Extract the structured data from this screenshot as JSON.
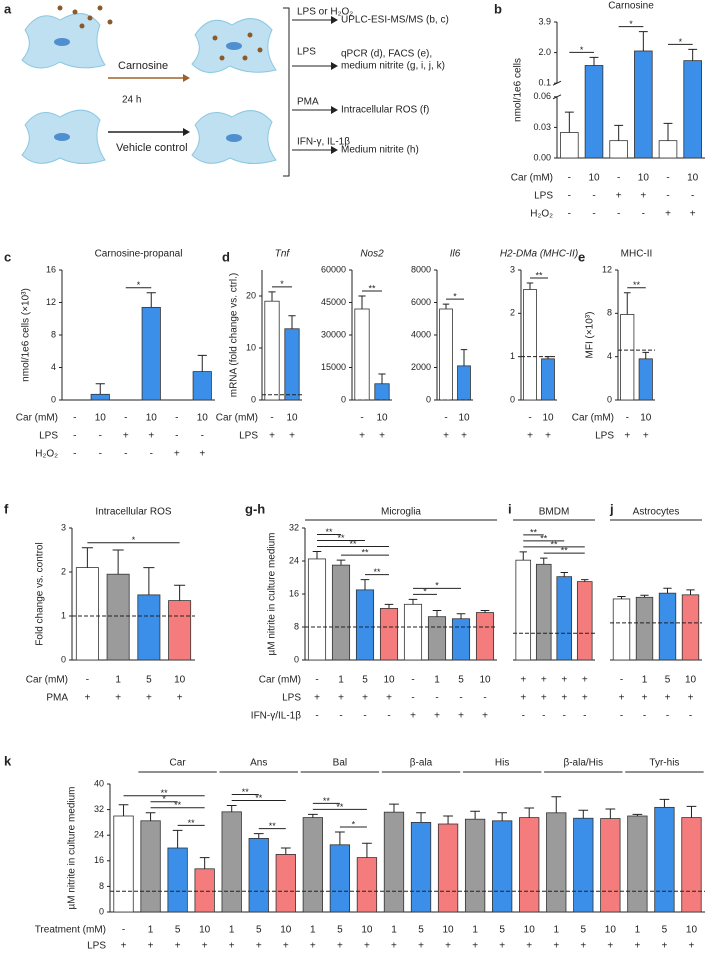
{
  "diagram": {
    "label": "a",
    "treatment": "Carnosine",
    "time": "24 h",
    "control": "Vehicle control",
    "conditions": [
      {
        "stimulus": "LPS or H₂O₂",
        "readout": [
          "UPLC-ESI-MS/MS (b, c)"
        ]
      },
      {
        "stimulus": "LPS",
        "readout": [
          "qPCR (d), FACS (e),",
          "medium nitrite (g, i, j, k)"
        ]
      },
      {
        "stimulus": "PMA",
        "readout": [
          "Intracellular ROS (f)"
        ]
      },
      {
        "stimulus": "IFN-γ, IL-1β",
        "readout": [
          "Medium nitrite (h)"
        ]
      }
    ]
  },
  "chart_data": [
    {
      "type": "bar",
      "panel": "b",
      "title": "Carnosine",
      "ylabel": "nmol/1e6 cells",
      "ylim": [
        0,
        3.9
      ],
      "ybreak": [
        0.06,
        0.1
      ],
      "yticks": [
        {
          "value": 0,
          "label": "0.00"
        },
        0.03,
        0.06,
        0.1,
        {
          "value": 2,
          "label": "2.0"
        },
        3.9
      ],
      "values": [
        0.025,
        1.2,
        0.017,
        2.1,
        0.017,
        1.5
      ],
      "errors": [
        0.02,
        0.5,
        0.015,
        1.2,
        0.017,
        0.7
      ],
      "colors": [
        "#ffffff",
        "#3b8fe8",
        "#ffffff",
        "#3b8fe8",
        "#ffffff",
        "#3b8fe8"
      ],
      "rows": [
        {
          "label": "Car (mM)",
          "values": [
            "-",
            "10",
            "-",
            "10",
            "-",
            "10"
          ]
        },
        {
          "label": "LPS",
          "values": [
            "-",
            "-",
            "+",
            "+",
            "-",
            "-"
          ]
        },
        {
          "label": "H₂O₂",
          "values": [
            "-",
            "-",
            "-",
            "-",
            "+",
            "+"
          ]
        }
      ],
      "significance": [
        {
          "label": "*",
          "bars": [
            0,
            1
          ]
        },
        {
          "label": "*",
          "bars": [
            2,
            3
          ]
        },
        {
          "label": "*",
          "bars": [
            4,
            5
          ]
        }
      ]
    },
    {
      "type": "bar",
      "panel": "c",
      "title": "Carnosine-propanal",
      "ylabel": "nmol/1e6 cells (×10³)",
      "ylim": [
        0,
        16
      ],
      "yticks": [
        0,
        4,
        8,
        12,
        16
      ],
      "values": [
        0,
        0.7,
        0,
        11.4,
        0,
        3.5
      ],
      "errors": [
        0,
        1.3,
        0,
        1.8,
        0,
        2.0
      ],
      "colors": [
        "#ffffff",
        "#3b8fe8",
        "#ffffff",
        "#3b8fe8",
        "#ffffff",
        "#3b8fe8"
      ],
      "rows": [
        {
          "label": "Car (mM)",
          "values": [
            "-",
            "10",
            "-",
            "10",
            "-",
            "10"
          ]
        },
        {
          "label": "LPS",
          "values": [
            "-",
            "-",
            "+",
            "+",
            "-",
            "-"
          ]
        },
        {
          "label": "H₂O₂",
          "values": [
            "-",
            "-",
            "-",
            "-",
            "+",
            "+"
          ]
        }
      ],
      "significance": [
        {
          "label": "*",
          "bars": [
            2,
            3
          ]
        }
      ]
    },
    {
      "type": "bar",
      "panel": "d",
      "title": "Tnf",
      "ylabel": "mRNA (fold change vs. ctrl.)",
      "ylim": [
        0,
        25
      ],
      "yticks": [
        0,
        10,
        20
      ],
      "values": [
        19,
        13.7
      ],
      "errors": [
        1.8,
        2.5
      ],
      "colors": [
        "#ffffff",
        "#3b8fe8"
      ],
      "baseline": 1,
      "rows": [
        {
          "label": "Car (mM)",
          "values": [
            "-",
            "10"
          ]
        },
        {
          "label": "LPS",
          "values": [
            "+",
            "+"
          ]
        }
      ],
      "significance": [
        {
          "label": "*",
          "bars": [
            0,
            1
          ]
        }
      ]
    },
    {
      "type": "bar",
      "title": "Nos2",
      "ylim": [
        0,
        60000
      ],
      "yticks": [
        0,
        15000,
        30000,
        45000,
        60000
      ],
      "values": [
        42000,
        7500
      ],
      "errors": [
        6000,
        4500
      ],
      "colors": [
        "#ffffff",
        "#3b8fe8"
      ],
      "baseline": 1,
      "rows": [
        {
          "values": [
            "-",
            "10"
          ]
        },
        {
          "values": [
            "+",
            "+"
          ]
        }
      ],
      "significance": [
        {
          "label": "**",
          "bars": [
            0,
            1
          ]
        }
      ]
    },
    {
      "type": "bar",
      "title": "Il6",
      "ylim": [
        0,
        8000
      ],
      "yticks": [
        0,
        2000,
        4000,
        6000,
        8000
      ],
      "values": [
        5600,
        2100
      ],
      "errors": [
        300,
        1000
      ],
      "colors": [
        "#ffffff",
        "#3b8fe8"
      ],
      "baseline": 1,
      "rows": [
        {
          "values": [
            "-",
            "10"
          ]
        },
        {
          "values": [
            "+",
            "+"
          ]
        }
      ],
      "significance": [
        {
          "label": "*",
          "bars": [
            0,
            1
          ]
        }
      ]
    },
    {
      "type": "bar",
      "title": "H2-DMa (MHC-II)",
      "ylim": [
        0,
        3
      ],
      "yticks": [
        0,
        1,
        2,
        3
      ],
      "values": [
        2.55,
        0.95
      ],
      "errors": [
        0.15,
        0.05
      ],
      "colors": [
        "#ffffff",
        "#3b8fe8"
      ],
      "baseline": 1,
      "rows": [
        {
          "values": [
            "-",
            "10"
          ]
        },
        {
          "values": [
            "+",
            "+"
          ]
        }
      ],
      "significance": [
        {
          "label": "**",
          "bars": [
            0,
            1
          ]
        }
      ]
    },
    {
      "type": "bar",
      "panel": "e",
      "title": "MHC-II",
      "ylabel": "MFI (×10³)",
      "ylim": [
        0,
        12
      ],
      "yticks": [
        0,
        4,
        8,
        12
      ],
      "values": [
        7.9,
        3.8
      ],
      "errors": [
        2,
        0.6
      ],
      "colors": [
        "#ffffff",
        "#3b8fe8"
      ],
      "baseline": 4.6,
      "rows": [
        {
          "label": "Car (mM)",
          "values": [
            "-",
            "10"
          ]
        },
        {
          "label": "LPS",
          "values": [
            "+",
            "+"
          ]
        }
      ],
      "significance": [
        {
          "label": "**",
          "bars": [
            0,
            1
          ]
        }
      ]
    },
    {
      "type": "bar",
      "panel": "f",
      "title": "Intracellular ROS",
      "ylabel": "Fold change vs. control",
      "ylim": [
        0,
        3
      ],
      "yticks": [
        0,
        1,
        2,
        3
      ],
      "values": [
        2.1,
        1.95,
        1.48,
        1.35
      ],
      "errors": [
        0.45,
        0.55,
        0.62,
        0.35
      ],
      "colors": [
        "#ffffff",
        "#9b9b9b",
        "#3b8fe8",
        "#f47c7c"
      ],
      "baseline": 1,
      "rows": [
        {
          "label": "Car (mM)",
          "values": [
            "-",
            "1",
            "5",
            "10"
          ]
        },
        {
          "label": "PMA",
          "values": [
            "+",
            "+",
            "+",
            "+"
          ]
        }
      ],
      "significance": [
        {
          "label": "*",
          "bars": [
            0,
            3
          ]
        }
      ]
    },
    {
      "type": "bar",
      "panel": "g-h",
      "title": "Microglia",
      "ylabel": "µM nitrite in culture medium",
      "ylim": [
        0,
        32
      ],
      "yticks": [
        0,
        8,
        16,
        24,
        32
      ],
      "values": [
        24.5,
        23,
        17,
        12.5,
        13.5,
        10.5,
        10,
        11.5
      ],
      "errors": [
        1.8,
        1.2,
        2.5,
        1,
        1.2,
        1.5,
        1.2,
        0.5
      ],
      "colors": [
        "#ffffff",
        "#9b9b9b",
        "#3b8fe8",
        "#f47c7c",
        "#ffffff",
        "#9b9b9b",
        "#3b8fe8",
        "#f47c7c"
      ],
      "baseline": 8,
      "rows": [
        {
          "label": "Car (mM)",
          "values": [
            "-",
            "1",
            "5",
            "10",
            "-",
            "1",
            "5",
            "10"
          ]
        },
        {
          "label": "LPS",
          "values": [
            "+",
            "+",
            "+",
            "+",
            "-",
            "-",
            "-",
            "-"
          ]
        },
        {
          "label": "IFN-γ/IL-1β",
          "values": [
            "-",
            "-",
            "-",
            "-",
            "+",
            "+",
            "+",
            "+"
          ]
        }
      ],
      "significance": [
        {
          "label": "**",
          "bars": [
            2,
            3
          ]
        },
        {
          "label": "**",
          "bars": [
            1,
            3
          ]
        },
        {
          "label": "**",
          "bars": [
            0,
            3
          ]
        },
        {
          "label": "**",
          "bars": [
            0,
            2
          ]
        },
        {
          "label": "**",
          "bars": [
            0,
            1
          ]
        },
        {
          "label": "*",
          "bars": [
            4,
            5
          ]
        },
        {
          "label": "*",
          "bars": [
            4,
            6
          ]
        }
      ]
    },
    {
      "type": "bar",
      "panel": "i",
      "title": "BMDM",
      "ylim": [
        0,
        32
      ],
      "values": [
        24.2,
        23.2,
        20.2,
        19
      ],
      "errors": [
        2,
        1.5,
        1,
        0.5
      ],
      "colors": [
        "#ffffff",
        "#9b9b9b",
        "#3b8fe8",
        "#f47c7c"
      ],
      "baseline": 6.5,
      "rows": [
        {
          "values": [
            "+",
            "+",
            "+",
            "+"
          ]
        },
        {
          "values": [
            "+",
            "+",
            "+",
            "+"
          ]
        },
        {
          "values": [
            "-",
            "-",
            "-",
            "-"
          ]
        }
      ],
      "significance": [
        {
          "label": "**",
          "bars": [
            1,
            3
          ]
        },
        {
          "label": "**",
          "bars": [
            0,
            3
          ]
        },
        {
          "label": "**",
          "bars": [
            0,
            2
          ]
        },
        {
          "label": "**",
          "bars": [
            0,
            1
          ]
        }
      ]
    },
    {
      "type": "bar",
      "panel": "j",
      "title": "Astrocytes",
      "ylim": [
        0,
        32
      ],
      "values": [
        14.8,
        15.2,
        16.2,
        15.8
      ],
      "errors": [
        0.6,
        0.5,
        1.2,
        1.2
      ],
      "colors": [
        "#ffffff",
        "#9b9b9b",
        "#3b8fe8",
        "#f47c7c"
      ],
      "baseline": 9,
      "rows": [
        {
          "values": [
            "-",
            "1",
            "5",
            "10"
          ]
        },
        {
          "values": [
            "+",
            "+",
            "+",
            "+"
          ]
        },
        {
          "values": [
            "-",
            "-",
            "-",
            "-"
          ]
        }
      ]
    },
    {
      "type": "bar",
      "panel": "k",
      "ylabel": "µM nitrite in culture medium",
      "ylim": [
        0,
        40
      ],
      "yticks": [
        0,
        8,
        16,
        24,
        32,
        40
      ],
      "values": [
        30,
        28.5,
        20,
        13.5,
        31.3,
        23,
        18,
        29.5,
        21,
        17,
        31.2,
        28,
        27.5,
        29,
        28.5,
        29.5,
        31,
        29.3,
        29.2,
        30,
        32.7,
        29.5
      ],
      "errors": [
        3.5,
        2.5,
        5.5,
        3.5,
        2,
        1.5,
        2,
        1,
        4,
        4.5,
        2.5,
        3,
        2.5,
        2.5,
        2.5,
        3,
        5,
        2.5,
        3,
        0.5,
        2.5,
        3.5
      ],
      "colors": [
        "#ffffff",
        "#9b9b9b",
        "#3b8fe8",
        "#f47c7c",
        "#9b9b9b",
        "#3b8fe8",
        "#f47c7c",
        "#9b9b9b",
        "#3b8fe8",
        "#f47c7c",
        "#9b9b9b",
        "#3b8fe8",
        "#f47c7c",
        "#9b9b9b",
        "#3b8fe8",
        "#f47c7c",
        "#9b9b9b",
        "#3b8fe8",
        "#f47c7c",
        "#9b9b9b",
        "#3b8fe8",
        "#f47c7c"
      ],
      "baseline": 6.5,
      "rows": [
        {
          "label": "Treatment (mM)",
          "values": [
            "-",
            "1",
            "5",
            "10",
            "1",
            "5",
            "10",
            "1",
            "5",
            "10",
            "1",
            "5",
            "10",
            "1",
            "5",
            "10",
            "1",
            "5",
            "10",
            "1",
            "5",
            "10"
          ]
        },
        {
          "label": "LPS",
          "values": [
            "+",
            "+",
            "+",
            "+",
            "+",
            "+",
            "+",
            "+",
            "+",
            "+",
            "+",
            "+",
            "+",
            "+",
            "+",
            "+",
            "+",
            "+",
            "+",
            "+",
            "+",
            "+"
          ]
        }
      ],
      "groups": [
        {
          "label": "Car",
          "bars": [
            1,
            3
          ]
        },
        {
          "label": "Ans",
          "bars": [
            4,
            6
          ]
        },
        {
          "label": "Bal",
          "bars": [
            7,
            9
          ]
        },
        {
          "label": "β-ala",
          "bars": [
            10,
            12
          ]
        },
        {
          "label": "His",
          "bars": [
            13,
            15
          ]
        },
        {
          "label": "β-ala/His",
          "bars": [
            16,
            18
          ]
        },
        {
          "label": "Tyr-his",
          "bars": [
            19,
            21
          ]
        }
      ],
      "significance": [
        {
          "label": "**",
          "bars": [
            2,
            3
          ]
        },
        {
          "label": "**",
          "bars": [
            1,
            3
          ]
        },
        {
          "label": "*",
          "bars": [
            1,
            2
          ]
        },
        {
          "label": "**",
          "bars": [
            5,
            6
          ]
        },
        {
          "label": "**",
          "bars": [
            4,
            6
          ]
        },
        {
          "label": "**",
          "bars": [
            4,
            5
          ]
        },
        {
          "label": "*",
          "bars": [
            8,
            9
          ]
        },
        {
          "label": "**",
          "bars": [
            7,
            9
          ]
        },
        {
          "label": "**",
          "bars": [
            7,
            8
          ]
        },
        {
          "label": "**",
          "bars": [
            0,
            3
          ]
        }
      ]
    }
  ]
}
